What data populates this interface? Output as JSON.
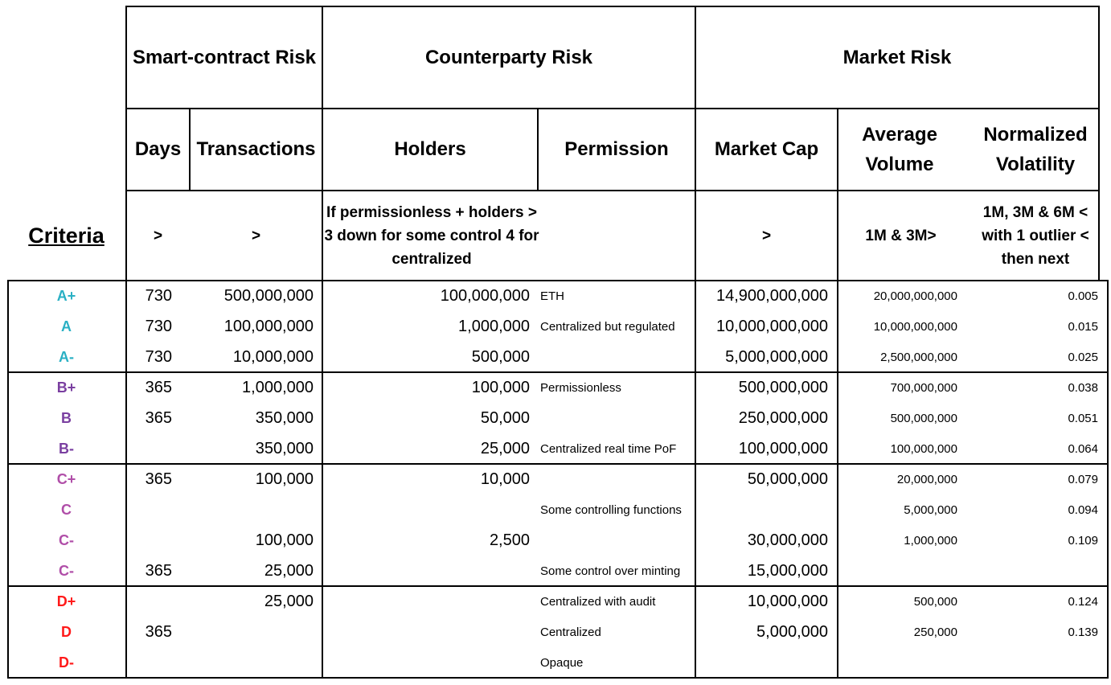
{
  "headers": {
    "smart_contract_risk": "Smart-contract Risk",
    "counterparty_risk": "Counterparty Risk",
    "market_risk": "Market Risk",
    "days": "Days",
    "transactions": "Transactions",
    "holders": "Holders",
    "permission": "Permission",
    "market_cap": "Market Cap",
    "average_volume": "Average Volume",
    "normalized_volatility": "Normalized Volatility"
  },
  "criteria": {
    "label": "Criteria",
    "days": ">",
    "transactions": ">",
    "holders_permission": "If permissionless + holders > 3 down for some control 4 for centralized",
    "market_cap": ">",
    "average_volume": "1M & 3M>",
    "volatility": "1M, 3M & 6M < with 1 outlier < then next"
  },
  "colors": {
    "A": "#2ab0c4",
    "B": "#7a3fa0",
    "C": "#b04ea8",
    "D": "#ff1a1a"
  },
  "rows": [
    {
      "grade": "A+",
      "days": "730",
      "transactions": "500,000,000",
      "holders": "100,000,000",
      "permission": "ETH",
      "market_cap": "14,900,000,000",
      "average_volume": "20,000,000,000",
      "volatility": "0.005"
    },
    {
      "grade": "A",
      "days": "730",
      "transactions": "100,000,000",
      "holders": "1,000,000",
      "permission": "Centralized but regulated",
      "market_cap": "10,000,000,000",
      "average_volume": "10,000,000,000",
      "volatility": "0.015"
    },
    {
      "grade": "A-",
      "days": "730",
      "transactions": "10,000,000",
      "holders": "500,000",
      "permission": "",
      "market_cap": "5,000,000,000",
      "average_volume": "2,500,000,000",
      "volatility": "0.025"
    },
    {
      "grade": "B+",
      "days": "365",
      "transactions": "1,000,000",
      "holders": "100,000",
      "permission": "Permissionless",
      "market_cap": "500,000,000",
      "average_volume": "700,000,000",
      "volatility": "0.038"
    },
    {
      "grade": "B",
      "days": "365",
      "transactions": "350,000",
      "holders": "50,000",
      "permission": "",
      "market_cap": "250,000,000",
      "average_volume": "500,000,000",
      "volatility": "0.051"
    },
    {
      "grade": "B-",
      "days": "",
      "transactions": "350,000",
      "holders": "25,000",
      "permission": "Centralized  real time PoF",
      "market_cap": "100,000,000",
      "average_volume": "100,000,000",
      "volatility": "0.064"
    },
    {
      "grade": "C+",
      "days": "365",
      "transactions": "100,000",
      "holders": "10,000",
      "permission": "",
      "market_cap": "50,000,000",
      "average_volume": "20,000,000",
      "volatility": "0.079"
    },
    {
      "grade": "C",
      "days": "",
      "transactions": "",
      "holders": "",
      "permission": "Some controlling functions",
      "market_cap": "",
      "average_volume": "5,000,000",
      "volatility": "0.094"
    },
    {
      "grade": "C-",
      "days": "",
      "transactions": "100,000",
      "holders": "2,500",
      "permission": "",
      "market_cap": "30,000,000",
      "average_volume": "1,000,000",
      "volatility": "0.109"
    },
    {
      "grade": "C-",
      "days": "365",
      "transactions": "25,000",
      "holders": "",
      "permission": "Some control over minting",
      "market_cap": "15,000,000",
      "average_volume": "",
      "volatility": ""
    },
    {
      "grade": "D+",
      "days": "",
      "transactions": "25,000",
      "holders": "",
      "permission": "Centralized with audit",
      "market_cap": "10,000,000",
      "average_volume": "500,000",
      "volatility": "0.124"
    },
    {
      "grade": "D",
      "days": "365",
      "transactions": "",
      "holders": "",
      "permission": "Centralized",
      "market_cap": "5,000,000",
      "average_volume": "250,000",
      "volatility": "0.139"
    },
    {
      "grade": "D-",
      "days": "",
      "transactions": "",
      "holders": "",
      "permission": "Opaque",
      "market_cap": "",
      "average_volume": "",
      "volatility": ""
    }
  ]
}
